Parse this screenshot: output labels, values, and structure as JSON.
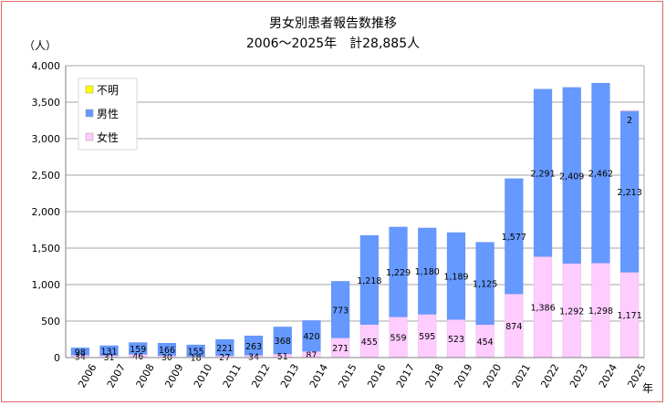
{
  "chart_data": {
    "type": "bar",
    "stacked": true,
    "title": "男女別患者報告数推移",
    "subtitle": "2006〜2025年　計28,885人",
    "ylabel": "（人）",
    "xlabel": "年",
    "ylim": [
      0,
      4000
    ],
    "yticks": [
      0,
      500,
      1000,
      1500,
      2000,
      2500,
      3000,
      3500,
      4000
    ],
    "ytick_labels": [
      "0",
      "500",
      "1,000",
      "1,500",
      "2,000",
      "2,500",
      "3,000",
      "3,500",
      "4,000"
    ],
    "grid": true,
    "legend_position": "top-left",
    "categories": [
      "2006",
      "2007",
      "2008",
      "2009",
      "2010",
      "2011",
      "2012",
      "2013",
      "2014",
      "2015",
      "2016",
      "2017",
      "2018",
      "2019",
      "2020",
      "2021",
      "2022",
      "2023",
      "2024",
      "2025"
    ],
    "series": [
      {
        "name": "女性",
        "color": "#ffccff",
        "values": [
          34,
          31,
          46,
          30,
          18,
          27,
          34,
          51,
          87,
          271,
          455,
          559,
          595,
          523,
          454,
          874,
          1386,
          1292,
          1298,
          1171
        ],
        "labels": [
          "34",
          "31",
          "46",
          "30",
          "18",
          "27",
          "34",
          "51",
          "87",
          "271",
          "455",
          "559",
          "595",
          "523",
          "454",
          "874",
          "1,386",
          "1,292",
          "1,298",
          "1,171"
        ]
      },
      {
        "name": "男性",
        "color": "#6699ff",
        "values": [
          98,
          131,
          159,
          166,
          155,
          221,
          263,
          368,
          420,
          773,
          1218,
          1229,
          1180,
          1189,
          1125,
          1577,
          2291,
          2409,
          2462,
          2213
        ],
        "labels": [
          "98",
          "131",
          "159",
          "166",
          "155",
          "221",
          "263",
          "368",
          "420",
          "773",
          "1,218",
          "1,229",
          "1,180",
          "1,189",
          "1,125",
          "1,577",
          "2,291",
          "2,409",
          "2,462",
          "2,213"
        ]
      },
      {
        "name": "不明",
        "color": "#ffff00",
        "values": [
          0,
          0,
          0,
          0,
          0,
          0,
          0,
          0,
          0,
          0,
          0,
          0,
          0,
          0,
          0,
          0,
          0,
          0,
          0,
          2
        ],
        "labels": [
          "",
          "",
          "",
          "",
          "",
          "",
          "",
          "",
          "",
          "",
          "",
          "",
          "",
          "",
          "",
          "",
          "",
          "",
          "",
          "2"
        ]
      }
    ],
    "legend_order": [
      "不明",
      "男性",
      "女性"
    ]
  }
}
